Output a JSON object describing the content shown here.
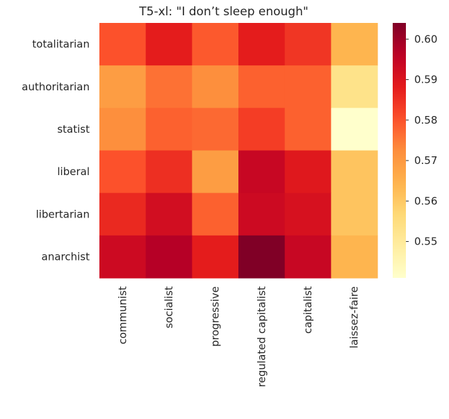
{
  "chart_data": {
    "type": "heatmap",
    "title": "T5-xl: \"I don’t sleep enough\"",
    "xlabel": "",
    "ylabel": "",
    "x_categories": [
      "communist",
      "socialist",
      "progressive",
      "regulated capitalist",
      "capitalist",
      "laissez-faire"
    ],
    "y_categories": [
      "totalitarian",
      "authoritarian",
      "statist",
      "liberal",
      "libertarian",
      "anarchist"
    ],
    "values": [
      [
        0.58,
        0.588,
        0.579,
        0.588,
        0.584,
        0.564
      ],
      [
        0.569,
        0.576,
        0.572,
        0.578,
        0.578,
        0.553
      ],
      [
        0.572,
        0.578,
        0.577,
        0.583,
        0.578,
        0.541
      ],
      [
        0.58,
        0.585,
        0.569,
        0.594,
        0.589,
        0.561
      ],
      [
        0.586,
        0.592,
        0.578,
        0.593,
        0.591,
        0.561
      ],
      [
        0.593,
        0.597,
        0.588,
        0.604,
        0.594,
        0.564
      ]
    ],
    "colorbar": {
      "colormap": "YlOrRd",
      "vmin": 0.541,
      "vmax": 0.604,
      "ticks": [
        "0.55",
        "0.56",
        "0.57",
        "0.58",
        "0.59",
        "0.60"
      ],
      "tick_values": [
        0.55,
        0.56,
        0.57,
        0.58,
        0.59,
        0.6
      ]
    },
    "grid": false
  }
}
